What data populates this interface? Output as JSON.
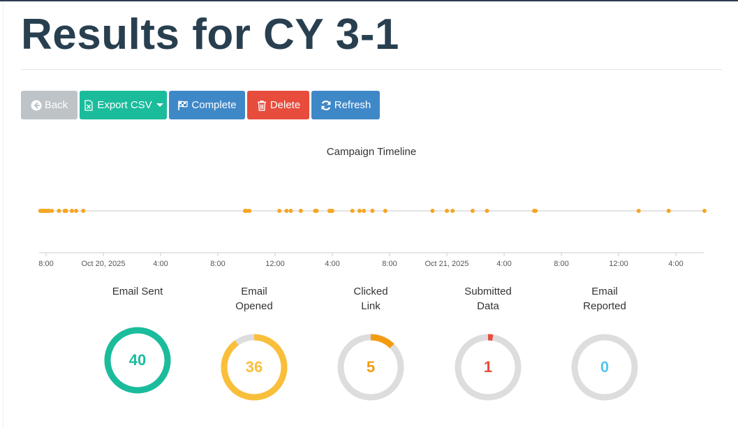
{
  "page": {
    "title": "Results for CY 3-1"
  },
  "toolbar": {
    "back_label": "Back",
    "export_label": "Export CSV",
    "complete_label": "Complete",
    "delete_label": "Delete",
    "refresh_label": "Refresh"
  },
  "timeline": {
    "title": "Campaign Timeline",
    "tick_labels": [
      "8:00",
      "Oct 20, 2025",
      "4:00",
      "8:00",
      "12:00",
      "4:00",
      "8:00",
      "Oct 21, 2025",
      "4:00",
      "8:00",
      "12:00",
      "4:00"
    ],
    "point_color": "#f5a623",
    "event_hours": [
      7.6,
      7.7,
      7.8,
      7.9,
      8.0,
      8.1,
      8.2,
      8.4,
      8.9,
      9.3,
      9.4,
      9.8,
      10.1,
      10.6,
      21.9,
      22.0,
      22.2,
      24.3,
      24.8,
      25.1,
      25.8,
      26.8,
      26.9,
      27.8,
      27.9,
      28.0,
      29.4,
      29.9,
      30.2,
      30.8,
      31.7,
      35.0,
      36.0,
      36.4,
      37.8,
      38.8,
      42.1,
      42.2,
      49.4,
      51.5,
      54.0
    ]
  },
  "stats": [
    {
      "label": "Email Sent",
      "value": "40",
      "fraction": 1.0,
      "color": "#1abc9c"
    },
    {
      "label": "Email\nOpened",
      "value": "36",
      "fraction": 0.9,
      "color": "#f9bf3b"
    },
    {
      "label": "Clicked\nLink",
      "value": "5",
      "fraction": 0.125,
      "color": "#f39c12"
    },
    {
      "label": "Submitted\nData",
      "value": "1",
      "fraction": 0.025,
      "color": "#e74c3c"
    },
    {
      "label": "Email\nReported",
      "value": "0",
      "fraction": 0.0,
      "color": "#54c7ec"
    }
  ]
}
